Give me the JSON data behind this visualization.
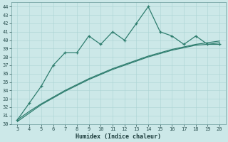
{
  "x": [
    3,
    4,
    5,
    6,
    7,
    8,
    9,
    10,
    11,
    12,
    13,
    14,
    15,
    16,
    17,
    18,
    19,
    20
  ],
  "y_data": [
    30.5,
    32.5,
    34.5,
    37.0,
    38.5,
    38.5,
    40.5,
    39.5,
    41.0,
    40.0,
    42.0,
    44.0,
    41.0,
    40.5,
    39.5,
    40.5,
    39.5,
    39.5
  ],
  "y_line1": [
    30.3,
    31.3,
    32.3,
    33.1,
    33.9,
    34.6,
    35.3,
    35.9,
    36.5,
    37.0,
    37.5,
    38.0,
    38.4,
    38.8,
    39.1,
    39.4,
    39.5,
    39.7
  ],
  "y_line2": [
    30.5,
    31.5,
    32.4,
    33.2,
    34.0,
    34.7,
    35.4,
    36.0,
    36.6,
    37.1,
    37.6,
    38.1,
    38.5,
    38.9,
    39.2,
    39.5,
    39.7,
    39.9
  ],
  "xlabel": "Humidex (Indice chaleur)",
  "xlim": [
    2.5,
    20.5
  ],
  "ylim": [
    30,
    44.5
  ],
  "yticks": [
    30,
    31,
    32,
    33,
    34,
    35,
    36,
    37,
    38,
    39,
    40,
    41,
    42,
    43,
    44
  ],
  "xticks": [
    3,
    4,
    5,
    6,
    7,
    8,
    9,
    10,
    11,
    12,
    13,
    14,
    15,
    16,
    17,
    18,
    19,
    20
  ],
  "line_color": "#2e7d6e",
  "bg_color": "#cce8e8",
  "grid_color": "#aad4d4",
  "tick_color": "#2a5050",
  "label_color": "#1a3a3a"
}
